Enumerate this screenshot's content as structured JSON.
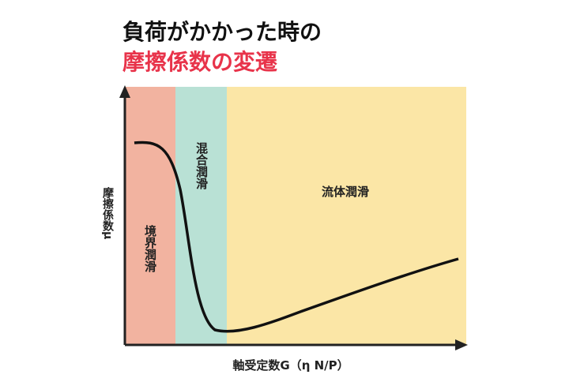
{
  "title": {
    "line1": "負荷がかかった時の",
    "line2": "摩擦係数の変遷"
  },
  "axes": {
    "y_label": "摩擦係数μ",
    "x_label": "軸受定数G（η N/P）"
  },
  "regions": [
    {
      "label": "境界潤滑"
    },
    {
      "label": "混合潤滑"
    },
    {
      "label": "流体潤滑"
    }
  ]
}
